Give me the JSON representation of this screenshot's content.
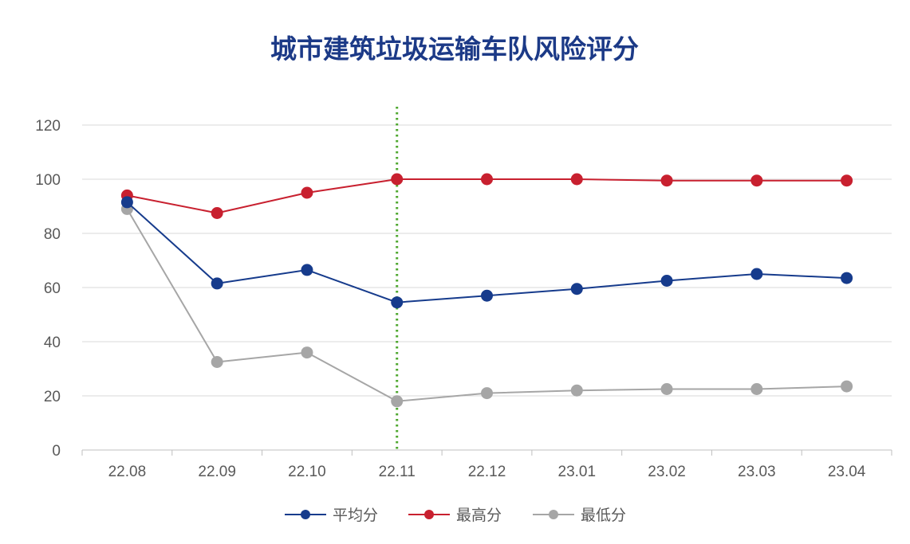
{
  "chart_data": {
    "type": "line",
    "title": "城市建筑垃圾运输车队风险评分",
    "xlabel": "",
    "ylabel": "",
    "categories": [
      "22.08",
      "22.09",
      "22.10",
      "22.11",
      "22.12",
      "23.01",
      "23.02",
      "23.03",
      "23.04"
    ],
    "ylim": [
      0,
      120
    ],
    "yticks": [
      0,
      20,
      40,
      60,
      80,
      100,
      120
    ],
    "grid": true,
    "legend_position": "bottom",
    "reference_line": {
      "category": "22.11",
      "style": "dotted",
      "color": "#4ea72e"
    },
    "series": [
      {
        "name": "平均分",
        "color": "#163b8c",
        "values": [
          91.5,
          61.5,
          66.5,
          54.5,
          57,
          59.5,
          62.5,
          65,
          63.5
        ]
      },
      {
        "name": "最高分",
        "color": "#c8202f",
        "values": [
          94,
          87.5,
          95,
          100,
          100,
          100,
          99.5,
          99.5,
          99.5
        ]
      },
      {
        "name": "最低分",
        "color": "#a6a6a6",
        "values": [
          89,
          32.5,
          36,
          18,
          21,
          22,
          22.5,
          22.5,
          23.5
        ]
      }
    ]
  }
}
